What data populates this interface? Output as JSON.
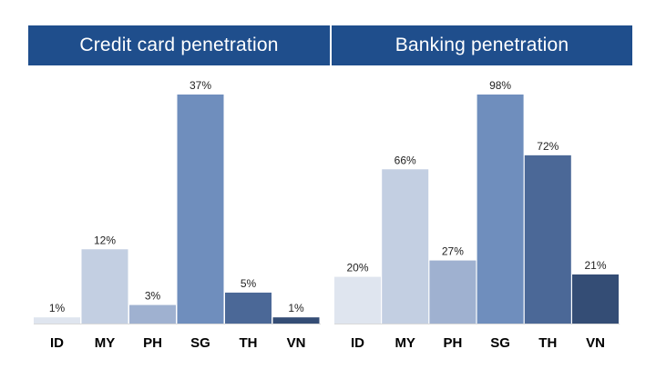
{
  "colors": {
    "header_bg": "#1f4e8c",
    "header_text": "#ffffff",
    "palette": [
      "#dfe5ef",
      "#c3cfe2",
      "#9fb1d0",
      "#6f8ebd",
      "#4b6897",
      "#344d75"
    ],
    "baseline": "#d9d9d9",
    "label_text": "#222222"
  },
  "chart_data": [
    {
      "type": "bar",
      "title": "Credit card penetration",
      "categories": [
        "ID",
        "MY",
        "PH",
        "SG",
        "TH",
        "VN"
      ],
      "values": [
        1,
        12,
        3,
        37,
        5,
        1
      ],
      "value_labels": [
        "1%",
        "12%",
        "3%",
        "37%",
        "5%",
        "1%"
      ],
      "unit": "%",
      "ylim": [
        0,
        37
      ],
      "grid": false,
      "legend": "none"
    },
    {
      "type": "bar",
      "title": "Banking penetration",
      "categories": [
        "ID",
        "MY",
        "PH",
        "SG",
        "TH",
        "VN"
      ],
      "values": [
        20,
        66,
        27,
        98,
        72,
        21
      ],
      "value_labels": [
        "20%",
        "66%",
        "27%",
        "98%",
        "72%",
        "21%"
      ],
      "unit": "%",
      "ylim": [
        0,
        98
      ],
      "grid": false,
      "legend": "none"
    }
  ]
}
